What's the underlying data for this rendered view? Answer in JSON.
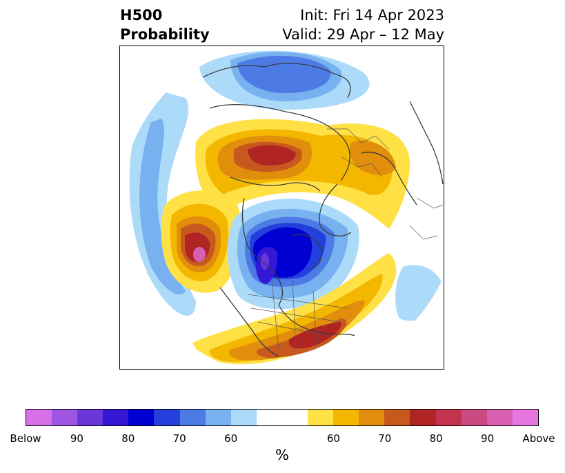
{
  "title": {
    "line1": "H500",
    "line2": "Probability",
    "init": "Init: Fri 14 Apr 2023",
    "valid": "Valid: 29 Apr – 12 May"
  },
  "map": {
    "projection": "north-polar-stereographic",
    "field": "500 hPa geopotential height tercile probability",
    "features": [
      {
        "name": "above-normal-north-pacific",
        "category": "Above",
        "max_percent": 90
      },
      {
        "name": "above-normal-greenland-arctic",
        "category": "Above",
        "max_percent": 80
      },
      {
        "name": "above-normal-eastern-us",
        "category": "Above",
        "max_percent": 80
      },
      {
        "name": "above-normal-europe",
        "category": "Above",
        "max_percent": 70
      },
      {
        "name": "below-normal-central-canada",
        "category": "Below",
        "max_percent": 90
      },
      {
        "name": "below-normal-siberia",
        "category": "Below",
        "max_percent": 80
      }
    ]
  },
  "colorbar": {
    "unit_label": "%",
    "below_colors": [
      "#d670e8",
      "#9e55e1",
      "#6a37d9",
      "#3418d6",
      "#0000d2",
      "#2440dc",
      "#4d7be6",
      "#78b1f0",
      "#acdaf9"
    ],
    "neutral_color": "#ffffff",
    "above_colors": [
      "#ffe045",
      "#f4b700",
      "#e08e0c",
      "#c7581e",
      "#b02424",
      "#c3334e",
      "#cb4a82",
      "#d95fb3",
      "#e876e0"
    ],
    "tick_labels": [
      "Below",
      "90",
      "80",
      "70",
      "60",
      "60",
      "70",
      "80",
      "90",
      "Above"
    ]
  }
}
